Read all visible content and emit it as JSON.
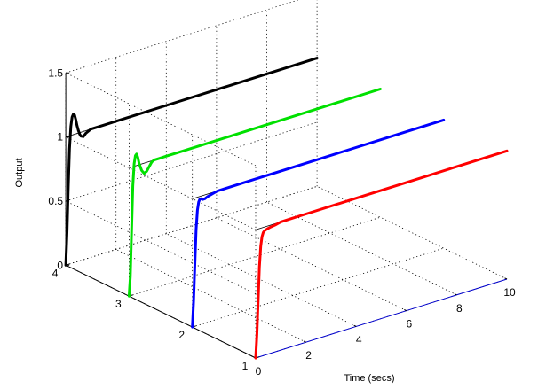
{
  "chart_data": {
    "type": "line",
    "title": "",
    "xlabel": "Time (secs)",
    "ylabel": "",
    "zlabel": "Output",
    "x_ticks": [
      0,
      2,
      4,
      6,
      8,
      10
    ],
    "y_ticks": [
      1,
      2,
      3,
      4
    ],
    "z_ticks": [
      0,
      0.5,
      1,
      1.5
    ],
    "x_tick_labels": [
      "0",
      "2",
      "4",
      "6",
      "8",
      "10"
    ],
    "y_tick_labels": [
      "1",
      "2",
      "3",
      "4"
    ],
    "z_tick_labels": [
      "0",
      "0.5",
      "1",
      "1.5"
    ],
    "xlim": [
      0,
      10
    ],
    "ylim": [
      1,
      4
    ],
    "zlim": [
      0,
      1.5
    ],
    "grid": true,
    "legend": "none",
    "series": [
      {
        "y": 4,
        "color": "#000000",
        "x": [
          0,
          0.05,
          0.1,
          0.15,
          0.2,
          0.25,
          0.3,
          0.35,
          0.4,
          0.45,
          0.5,
          0.55,
          0.6,
          0.7,
          0.8,
          0.9,
          1.0,
          1.2,
          1.5,
          2,
          4,
          6,
          8,
          10
        ],
        "z": [
          0,
          0.25,
          0.6,
          0.9,
          1.07,
          1.14,
          1.16,
          1.15,
          1.11,
          1.06,
          1.02,
          0.99,
          0.97,
          0.96,
          0.98,
          0.99,
          1.0,
          1.0,
          1.0,
          1.0,
          1.0,
          1.0,
          1.0,
          1.0
        ]
      },
      {
        "y": 3,
        "color": "#00e000",
        "x": [
          0,
          0.05,
          0.1,
          0.15,
          0.2,
          0.25,
          0.3,
          0.35,
          0.4,
          0.5,
          0.6,
          0.7,
          0.8,
          0.9,
          1.0,
          1.2,
          1.5,
          2,
          4,
          6,
          8,
          10
        ],
        "z": [
          0,
          0.15,
          0.5,
          0.85,
          1.02,
          1.08,
          1.09,
          1.06,
          1.01,
          0.95,
          0.92,
          0.93,
          0.96,
          0.99,
          1.0,
          1.0,
          1.0,
          1.0,
          1.0,
          1.0,
          1.0,
          1.0
        ]
      },
      {
        "y": 2,
        "color": "#0000ff",
        "x": [
          0,
          0.05,
          0.1,
          0.15,
          0.2,
          0.25,
          0.3,
          0.35,
          0.4,
          0.5,
          0.6,
          0.8,
          1.0,
          1.5,
          2,
          4,
          6,
          8,
          10
        ],
        "z": [
          0,
          0.2,
          0.48,
          0.75,
          0.9,
          0.96,
          0.98,
          0.98,
          0.97,
          0.97,
          0.98,
          0.99,
          1.0,
          1.0,
          1.0,
          1.0,
          1.0,
          1.0,
          1.0
        ]
      },
      {
        "y": 1,
        "color": "#ff0000",
        "x": [
          0,
          0.05,
          0.1,
          0.15,
          0.2,
          0.25,
          0.3,
          0.35,
          0.4,
          0.5,
          0.6,
          0.8,
          1.0,
          1.5,
          2,
          4,
          6,
          8,
          10
        ],
        "z": [
          0,
          0.18,
          0.44,
          0.7,
          0.86,
          0.93,
          0.96,
          0.97,
          0.975,
          0.98,
          0.985,
          0.99,
          1.0,
          1.0,
          1.0,
          1.0,
          1.0,
          1.0,
          1.0
        ]
      }
    ]
  }
}
